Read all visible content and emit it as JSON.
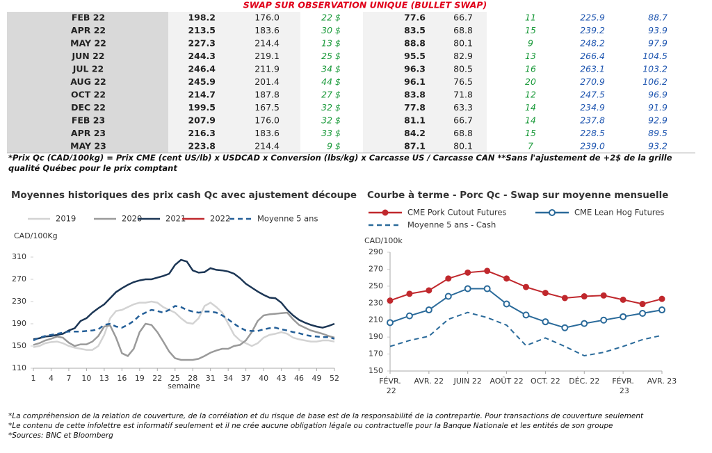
{
  "table": {
    "title": "SWAP SUR OBSERVATION UNIQUE (BULLET SWAP)",
    "rows": [
      [
        "FEB 22",
        "198.2",
        "176.0",
        "22 $",
        "77.6",
        "66.7",
        "11",
        "225.9",
        "88.7"
      ],
      [
        "APR 22",
        "213.5",
        "183.6",
        "30 $",
        "83.5",
        "68.8",
        "15",
        "239.2",
        "93.9"
      ],
      [
        "MAY 22",
        "227.3",
        "214.4",
        "13 $",
        "88.8",
        "80.1",
        "9",
        "248.2",
        "97.9"
      ],
      [
        "JUN 22",
        "244.3",
        "219.1",
        "25 $",
        "95.5",
        "82.9",
        "13",
        "266.4",
        "104.5"
      ],
      [
        "JUL 22",
        "246.4",
        "211.9",
        "34 $",
        "96.3",
        "80.5",
        "16",
        "263.1",
        "103.2"
      ],
      [
        "AUG 22",
        "245.9",
        "201.4",
        "44 $",
        "96.1",
        "76.5",
        "20",
        "270.9",
        "106.2"
      ],
      [
        "OCT 22",
        "214.7",
        "187.8",
        "27 $",
        "83.8",
        "71.8",
        "12",
        "247.5",
        "96.9"
      ],
      [
        "DEC 22",
        "199.5",
        "167.5",
        "32 $",
        "77.8",
        "63.3",
        "14",
        "234.9",
        "91.9"
      ],
      [
        "FEB 23",
        "207.9",
        "176.0",
        "32 $",
        "81.1",
        "66.7",
        "14",
        "237.8",
        "92.9"
      ],
      [
        "APR 23",
        "216.3",
        "183.6",
        "33 $",
        "84.2",
        "68.8",
        "15",
        "228.5",
        "89.5"
      ],
      [
        "MAY 23",
        "223.8",
        "214.4",
        "9 $",
        "87.1",
        "80.1",
        "7",
        "239.0",
        "93.2"
      ]
    ]
  },
  "footnote": "*Prix Qc (CAD/100kg) = Prix CME (cent US/lb) x USDCAD x Conversion (lbs/kg) x Carcasse US / Carcasse CAN **Sans l'ajustement de +2$ de la grille qualité Québec pour le prix comptant",
  "chart_data": [
    {
      "type": "line",
      "title": "Moyennes historiques des prix cash Qc avec ajustement découpe",
      "ylabel": "CAD/100Kg",
      "xlabel": "semaine",
      "legend": "top",
      "grid": false,
      "x": [
        1,
        2,
        3,
        4,
        5,
        6,
        7,
        8,
        9,
        10,
        11,
        12,
        13,
        14,
        15,
        16,
        17,
        18,
        19,
        20,
        21,
        22,
        23,
        24,
        25,
        26,
        27,
        28,
        29,
        30,
        31,
        32,
        33,
        34,
        35,
        36,
        37,
        38,
        39,
        40,
        41,
        42,
        43,
        44,
        45,
        46,
        47,
        48,
        49,
        50,
        51,
        52
      ],
      "xlim": [
        1,
        52
      ],
      "xticks": [
        1,
        4,
        7,
        10,
        13,
        16,
        19,
        22,
        25,
        28,
        31,
        34,
        37,
        40,
        43,
        46,
        49,
        52
      ],
      "ylim": [
        110,
        310
      ],
      "yticks": [
        110,
        150,
        190,
        230,
        270,
        310
      ],
      "series": [
        {
          "name": "2019",
          "color": "#d3d3d3",
          "line_style": "solid",
          "values": [
            148,
            150,
            155,
            157,
            158,
            155,
            150,
            147,
            145,
            143,
            143,
            150,
            170,
            200,
            213,
            215,
            220,
            225,
            228,
            228,
            230,
            228,
            220,
            215,
            210,
            200,
            192,
            190,
            200,
            222,
            228,
            220,
            210,
            190,
            170,
            160,
            155,
            150,
            155,
            165,
            170,
            172,
            175,
            172,
            165,
            162,
            160,
            158,
            158,
            160,
            160,
            158
          ]
        },
        {
          "name": "2020",
          "color": "#9a9a9a",
          "line_style": "solid",
          "values": [
            152,
            155,
            160,
            163,
            167,
            165,
            156,
            150,
            153,
            153,
            158,
            168,
            185,
            187,
            165,
            137,
            132,
            145,
            175,
            190,
            188,
            175,
            158,
            140,
            128,
            125,
            125,
            125,
            127,
            132,
            138,
            142,
            145,
            145,
            150,
            152,
            160,
            175,
            195,
            205,
            207,
            208,
            209,
            210,
            198,
            188,
            183,
            178,
            175,
            172,
            168,
            165
          ]
        },
        {
          "name": "2021",
          "color": "#1c3655",
          "line_style": "solid",
          "values": [
            162,
            164,
            167,
            168,
            170,
            172,
            178,
            182,
            195,
            200,
            210,
            218,
            225,
            236,
            247,
            254,
            260,
            265,
            268,
            270,
            270,
            273,
            276,
            280,
            296,
            305,
            302,
            286,
            282,
            283,
            290,
            287,
            286,
            284,
            280,
            272,
            262,
            255,
            248,
            242,
            237,
            236,
            228,
            215,
            205,
            197,
            192,
            188,
            185,
            183,
            186,
            190
          ]
        },
        {
          "name": "2022",
          "color": "#c0282d",
          "line_style": "solid",
          "values": [
            null,
            null,
            null,
            null,
            null,
            null,
            null,
            null,
            null,
            null,
            null,
            null,
            null,
            null,
            null,
            null,
            null,
            null,
            null,
            null,
            null,
            null,
            null,
            null,
            null,
            null,
            null,
            null,
            null,
            null,
            null,
            null,
            null,
            null,
            null,
            null,
            null,
            null,
            null,
            null,
            null,
            null,
            null,
            null,
            null,
            null,
            null,
            null,
            null,
            null,
            null,
            null
          ]
        },
        {
          "name": "Moyenne 5 ans",
          "color": "#245f98",
          "line_style": "dashed",
          "values": [
            160,
            165,
            168,
            170,
            172,
            174,
            176,
            176,
            176,
            177,
            178,
            180,
            188,
            190,
            185,
            183,
            188,
            195,
            205,
            210,
            215,
            213,
            210,
            215,
            222,
            220,
            215,
            212,
            210,
            212,
            212,
            210,
            205,
            198,
            190,
            183,
            178,
            177,
            177,
            180,
            182,
            183,
            180,
            178,
            175,
            173,
            170,
            168,
            167,
            166,
            166,
            163
          ]
        }
      ]
    },
    {
      "type": "line",
      "title": "Courbe à terme - Porc Qc - Swap sur moyenne mensuelle",
      "ylabel": "CAD/100k",
      "legend": "top",
      "grid": false,
      "categories": [
        "FÉVR. 22",
        null,
        "AVR. 22",
        null,
        "JUIN 22",
        null,
        "AOÛT 22",
        null,
        "OCT. 22",
        null,
        "DÉC. 22",
        null,
        "FÉVR. 23",
        null,
        "AVR. 23"
      ],
      "ylim": [
        150,
        290
      ],
      "yticks": [
        150,
        170,
        190,
        210,
        230,
        250,
        270,
        290
      ],
      "series": [
        {
          "name": "CME Pork Cutout Futures",
          "color": "#c0282d",
          "line_style": "solid",
          "marker": "filled-circle",
          "values": [
            233,
            241,
            245,
            259,
            266,
            268,
            259,
            249,
            242,
            236,
            238,
            239,
            234,
            229,
            235
          ]
        },
        {
          "name": "CME Lean Hog Futures",
          "color": "#2a6a9a",
          "line_style": "solid",
          "marker": "open-circle",
          "values": [
            207,
            215,
            222,
            238,
            247,
            247,
            229,
            216,
            208,
            201,
            206,
            210,
            214,
            218,
            222
          ]
        },
        {
          "name": "Moyenne 5 ans - Cash",
          "color": "#2a6a9a",
          "line_style": "dashed",
          "values": [
            179,
            186,
            191,
            211,
            219,
            213,
            204,
            180,
            189,
            179,
            168,
            172,
            179,
            187,
            192
          ]
        }
      ]
    }
  ],
  "notes": [
    "*La compréhension de la relation de couverture, de la corrélation et du risque de base est de la responsabilité de la contrepartie. Pour transactions de couverture seulement",
    "*Le contenu de cette infolettre est informatif seulement et il ne crée aucune obligation légale ou contractuelle pour la Banque Nationale et les entités de son groupe",
    "*Sources: BNC et Bloomberg"
  ]
}
